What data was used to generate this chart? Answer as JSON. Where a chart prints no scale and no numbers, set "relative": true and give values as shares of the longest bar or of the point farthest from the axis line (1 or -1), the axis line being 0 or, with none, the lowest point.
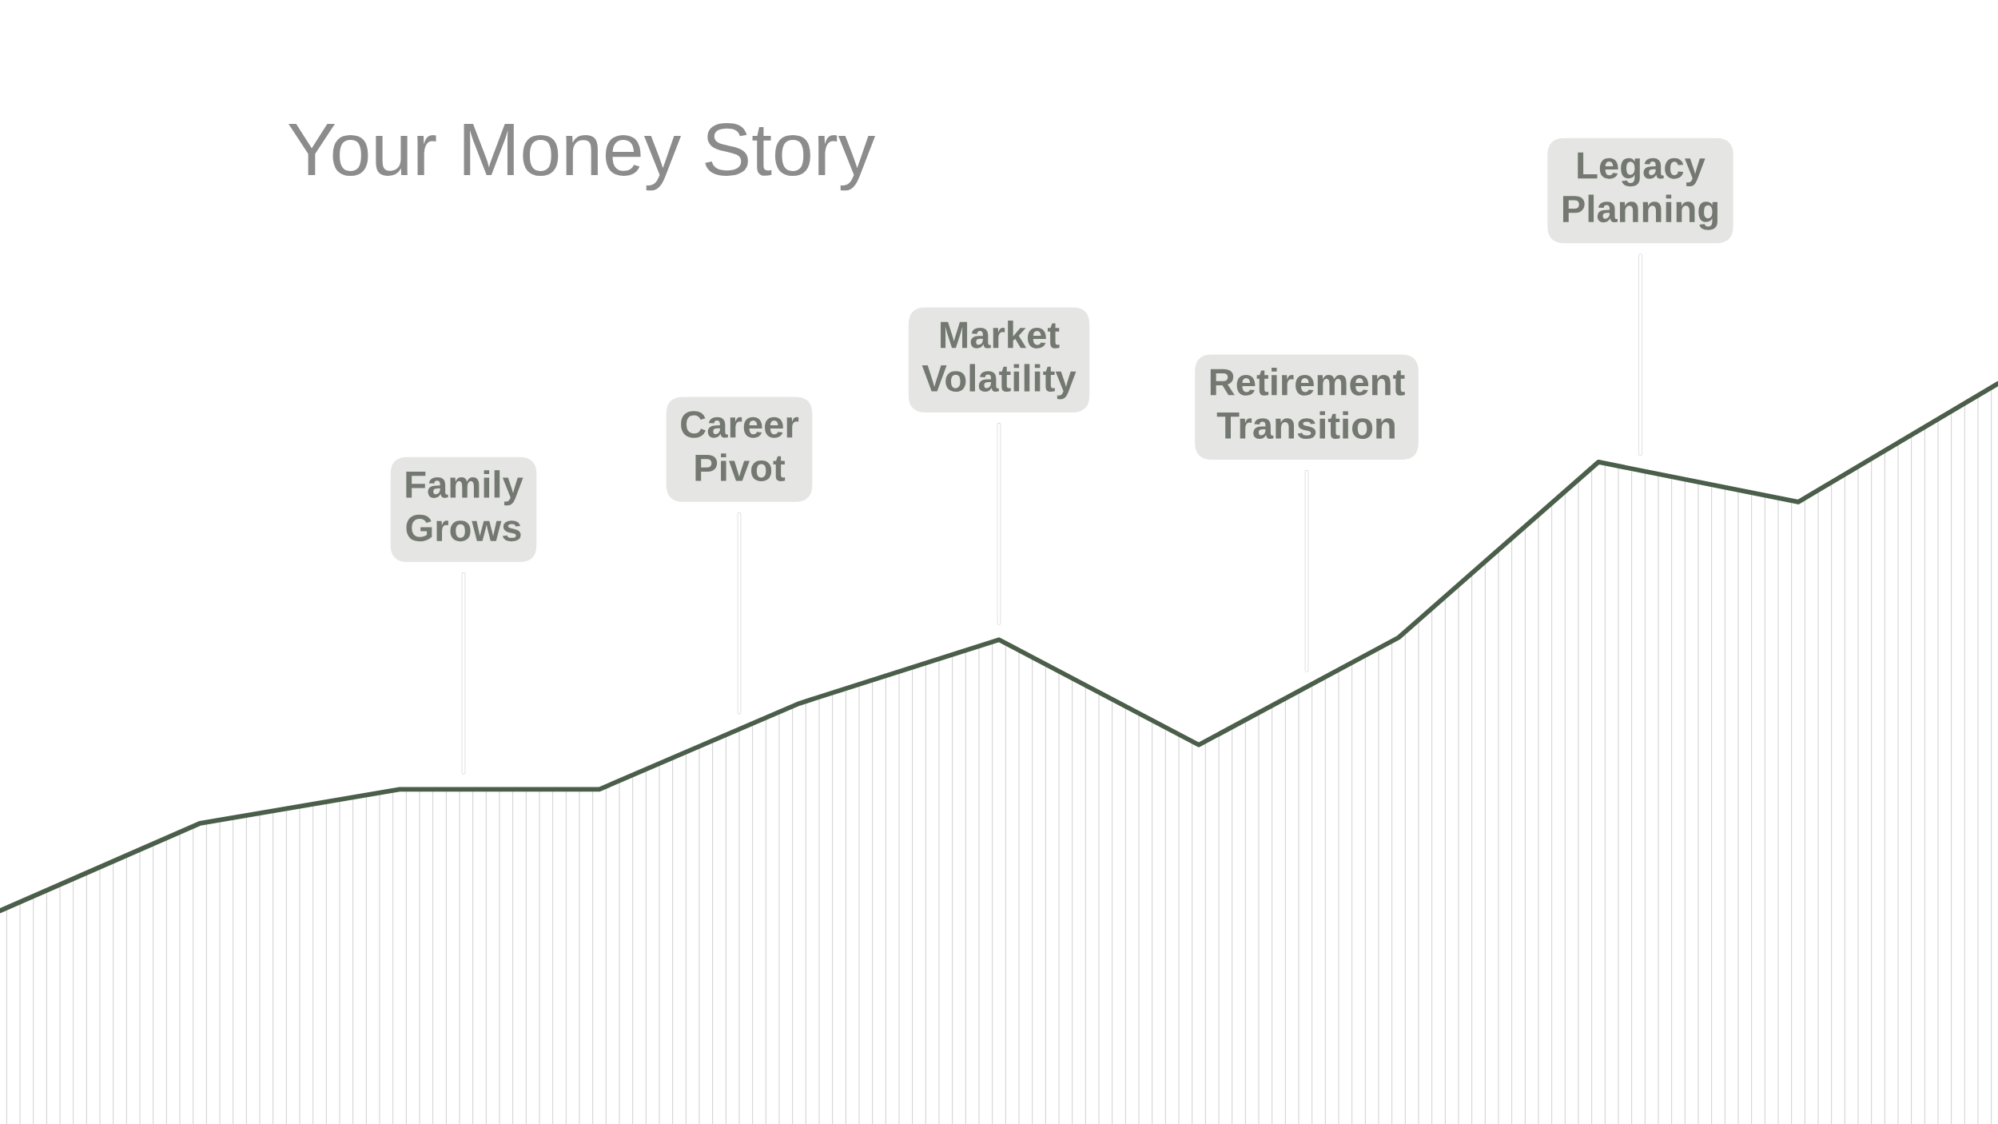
{
  "chart_data": {
    "type": "area",
    "title": "Your Money Story",
    "categories": [
      null,
      null,
      null,
      null,
      null,
      null,
      null,
      null,
      null,
      null,
      null
    ],
    "values": [
      0.288,
      0.406,
      0.452,
      0.452,
      0.568,
      0.654,
      0.512,
      0.657,
      0.894,
      0.84,
      1
    ],
    "color": "#4a5e4a",
    "relative": true,
    "annotations": [
      "Family\nGrows",
      "Career\nPivot",
      "Market\nVolatility",
      "Retirement\nTransition",
      "Legacy\nPlanning"
    ]
  }
}
